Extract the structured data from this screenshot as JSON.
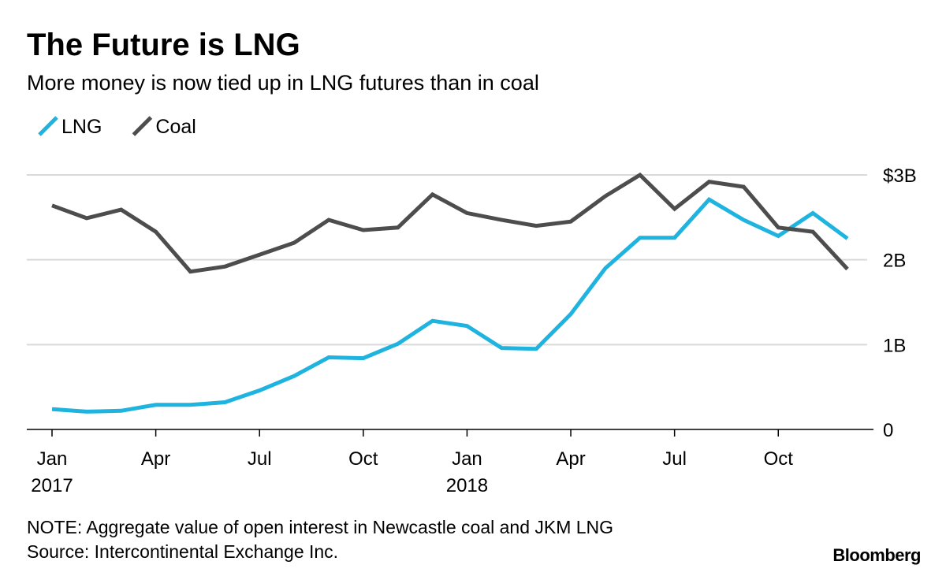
{
  "chart_data": {
    "type": "line",
    "title": "The Future is LNG",
    "subtitle": "More money is now tied up in LNG futures than in coal",
    "note": "NOTE: Aggregate value of open interest in Newcastle coal and JKM LNG",
    "source": "Source: Intercontinental Exchange Inc.",
    "brand": "Bloomberg",
    "x": [
      "2017-01",
      "2017-02",
      "2017-03",
      "2017-04",
      "2017-05",
      "2017-06",
      "2017-07",
      "2017-08",
      "2017-09",
      "2017-10",
      "2017-11",
      "2017-12",
      "2018-01",
      "2018-02",
      "2018-03",
      "2018-04",
      "2018-05",
      "2018-06",
      "2018-07",
      "2018-08",
      "2018-09",
      "2018-10",
      "2018-11",
      "2018-12"
    ],
    "xlim": [
      "2017-01",
      "2018-12"
    ],
    "xticks": [
      {
        "value": "2017-01",
        "label": "Jan",
        "year": "2017"
      },
      {
        "value": "2017-04",
        "label": "Apr"
      },
      {
        "value": "2017-07",
        "label": "Jul"
      },
      {
        "value": "2017-10",
        "label": "Oct"
      },
      {
        "value": "2018-01",
        "label": "Jan",
        "year": "2018"
      },
      {
        "value": "2018-04",
        "label": "Apr"
      },
      {
        "value": "2018-07",
        "label": "Jul"
      },
      {
        "value": "2018-10",
        "label": "Oct"
      }
    ],
    "ylim": [
      0,
      3
    ],
    "yticks": [
      0,
      {
        "value": 1,
        "label": "1B"
      },
      {
        "value": 2,
        "label": "2B"
      },
      {
        "value": 3,
        "label": "$3B"
      }
    ],
    "grid": true,
    "series": [
      {
        "name": "LNG",
        "color": "#1fb3e0",
        "values": [
          0.24,
          0.21,
          0.22,
          0.29,
          0.29,
          0.32,
          0.46,
          0.63,
          0.85,
          0.84,
          1.01,
          1.28,
          1.22,
          0.96,
          0.95,
          1.36,
          1.9,
          2.26,
          2.26,
          2.71,
          2.47,
          2.28,
          2.55,
          2.25
        ]
      },
      {
        "name": "Coal",
        "color": "#4d4d4d",
        "values": [
          2.64,
          2.49,
          2.59,
          2.33,
          1.86,
          1.92,
          2.06,
          2.2,
          2.47,
          2.35,
          2.38,
          2.77,
          2.55,
          2.47,
          2.4,
          2.45,
          2.75,
          3.0,
          2.6,
          2.92,
          2.86,
          2.38,
          2.33,
          1.89
        ]
      }
    ]
  }
}
